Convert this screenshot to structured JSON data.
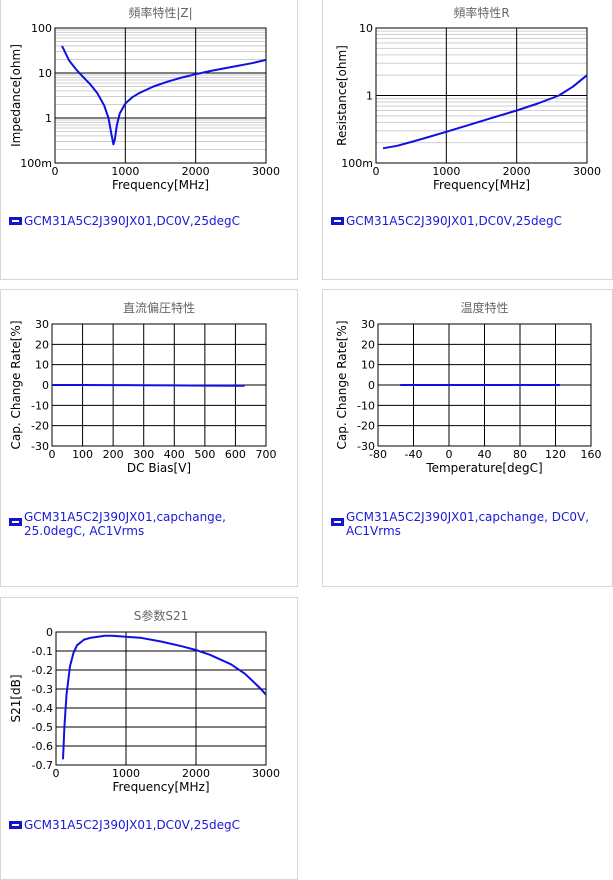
{
  "chart_data": [
    {
      "id": "c1",
      "type": "line",
      "title": "頻率特性|Z|",
      "xlabel": "Frequency[MHz]",
      "ylabel": "Impedance[ohm]",
      "xlim": [
        0,
        3000
      ],
      "ylim": [
        0.1,
        100
      ],
      "yscale": "log",
      "xticks": [
        0,
        1000,
        2000,
        3000
      ],
      "xtick_labels": [
        "0",
        "1000",
        "2000",
        "3000"
      ],
      "yticks": [
        0.1,
        1,
        10,
        100
      ],
      "ytick_labels": [
        "100m",
        "1",
        "10",
        "100"
      ],
      "grid": true,
      "series": [
        {
          "name": "GCM31A5C2J390JX01,DC0V,25degC",
          "color": "#1010e0",
          "x": [
            100,
            200,
            300,
            400,
            500,
            600,
            700,
            760,
            800,
            830,
            850,
            880,
            920,
            1000,
            1100,
            1200,
            1400,
            1600,
            1800,
            2000,
            2200,
            2500,
            2800,
            3000
          ],
          "y": [
            40,
            19,
            12,
            8.2,
            5.6,
            3.6,
            1.9,
            1.0,
            0.45,
            0.26,
            0.33,
            0.7,
            1.25,
            2.1,
            2.9,
            3.6,
            5.0,
            6.4,
            7.9,
            9.4,
            11.0,
            13.5,
            16.5,
            19.5
          ]
        }
      ]
    },
    {
      "id": "c2",
      "type": "line",
      "title": "頻率特性R",
      "xlabel": "Frequency[MHz]",
      "ylabel": "Resistance[ohm]",
      "xlim": [
        0,
        3000
      ],
      "ylim": [
        0.1,
        10
      ],
      "yscale": "log",
      "xticks": [
        0,
        1000,
        2000,
        3000
      ],
      "xtick_labels": [
        "0",
        "1000",
        "2000",
        "3000"
      ],
      "yticks": [
        0.1,
        1,
        10
      ],
      "ytick_labels": [
        "100m",
        "1",
        "10"
      ],
      "grid": true,
      "series": [
        {
          "name": "GCM31A5C2J390JX01,DC0V,25degC",
          "color": "#1010e0",
          "x": [
            100,
            300,
            500,
            700,
            1000,
            1300,
            1600,
            2000,
            2300,
            2600,
            2800,
            3000
          ],
          "y": [
            0.165,
            0.18,
            0.205,
            0.235,
            0.29,
            0.36,
            0.45,
            0.6,
            0.76,
            1.0,
            1.35,
            2.0
          ]
        }
      ]
    },
    {
      "id": "c3",
      "type": "line",
      "title": "直流偏圧特性",
      "xlabel": "DC Bias[V]",
      "ylabel": "Cap. Change Rate[%]",
      "xlim": [
        0,
        700
      ],
      "ylim": [
        -30,
        30
      ],
      "xticks": [
        0,
        100,
        200,
        300,
        400,
        500,
        600,
        700
      ],
      "xtick_labels": [
        "0",
        "100",
        "200",
        "300",
        "400",
        "500",
        "600",
        "700"
      ],
      "yticks": [
        -30,
        -20,
        -10,
        0,
        10,
        20,
        30
      ],
      "ytick_labels": [
        "-30",
        "-20",
        "-10",
        "0",
        "10",
        "20",
        "30"
      ],
      "grid": true,
      "series": [
        {
          "name": "GCM31A5C2J390JX01,capchange,\n25.0degC, AC1Vrms",
          "color": "#1010e0",
          "x": [
            0,
            100,
            200,
            300,
            400,
            500,
            630
          ],
          "y": [
            0,
            0,
            -0.05,
            -0.1,
            -0.2,
            -0.3,
            -0.4
          ]
        }
      ]
    },
    {
      "id": "c4",
      "type": "line",
      "title": "温度特性",
      "xlabel": "Temperature[degC]",
      "ylabel": "Cap. Change Rate[%]",
      "xlim": [
        -80,
        160
      ],
      "ylim": [
        -30,
        30
      ],
      "xticks": [
        -80,
        -40,
        0,
        40,
        80,
        120,
        160
      ],
      "xtick_labels": [
        "-80",
        "-40",
        "0",
        "40",
        "80",
        "120",
        "160"
      ],
      "yticks": [
        -30,
        -20,
        -10,
        0,
        10,
        20,
        30
      ],
      "ytick_labels": [
        "-30",
        "-20",
        "-10",
        "0",
        "10",
        "20",
        "30"
      ],
      "grid": true,
      "series": [
        {
          "name": "GCM31A5C2J390JX01,capchange, DC0V,\nAC1Vrms",
          "color": "#1010e0",
          "x": [
            -55,
            0,
            50,
            100,
            125
          ],
          "y": [
            0,
            0,
            0,
            0,
            0
          ]
        }
      ]
    },
    {
      "id": "c5",
      "type": "line",
      "title": "S参数S21",
      "xlabel": "Frequency[MHz]",
      "ylabel": "S21[dB]",
      "xlim": [
        0,
        3000
      ],
      "ylim": [
        -0.7,
        0
      ],
      "xticks": [
        0,
        1000,
        2000,
        3000
      ],
      "xtick_labels": [
        "0",
        "1000",
        "2000",
        "3000"
      ],
      "yticks": [
        0,
        -0.1,
        -0.2,
        -0.3,
        -0.4,
        -0.5,
        -0.6,
        -0.7
      ],
      "ytick_labels": [
        "0",
        "-0.1",
        "-0.2",
        "-0.3",
        "-0.4",
        "-0.5",
        "-0.6",
        "-0.7"
      ],
      "grid": true,
      "series": [
        {
          "name": "GCM31A5C2J390JX01,DC0V,25degC",
          "color": "#1010e0",
          "x": [
            100,
            120,
            150,
            200,
            250,
            300,
            400,
            500,
            600,
            700,
            800,
            1000,
            1200,
            1500,
            1800,
            2000,
            2200,
            2500,
            2700,
            2900,
            3000
          ],
          "y": [
            -0.67,
            -0.5,
            -0.33,
            -0.18,
            -0.11,
            -0.07,
            -0.04,
            -0.03,
            -0.025,
            -0.02,
            -0.02,
            -0.025,
            -0.03,
            -0.05,
            -0.075,
            -0.095,
            -0.12,
            -0.17,
            -0.22,
            -0.29,
            -0.33
          ]
        }
      ]
    }
  ]
}
